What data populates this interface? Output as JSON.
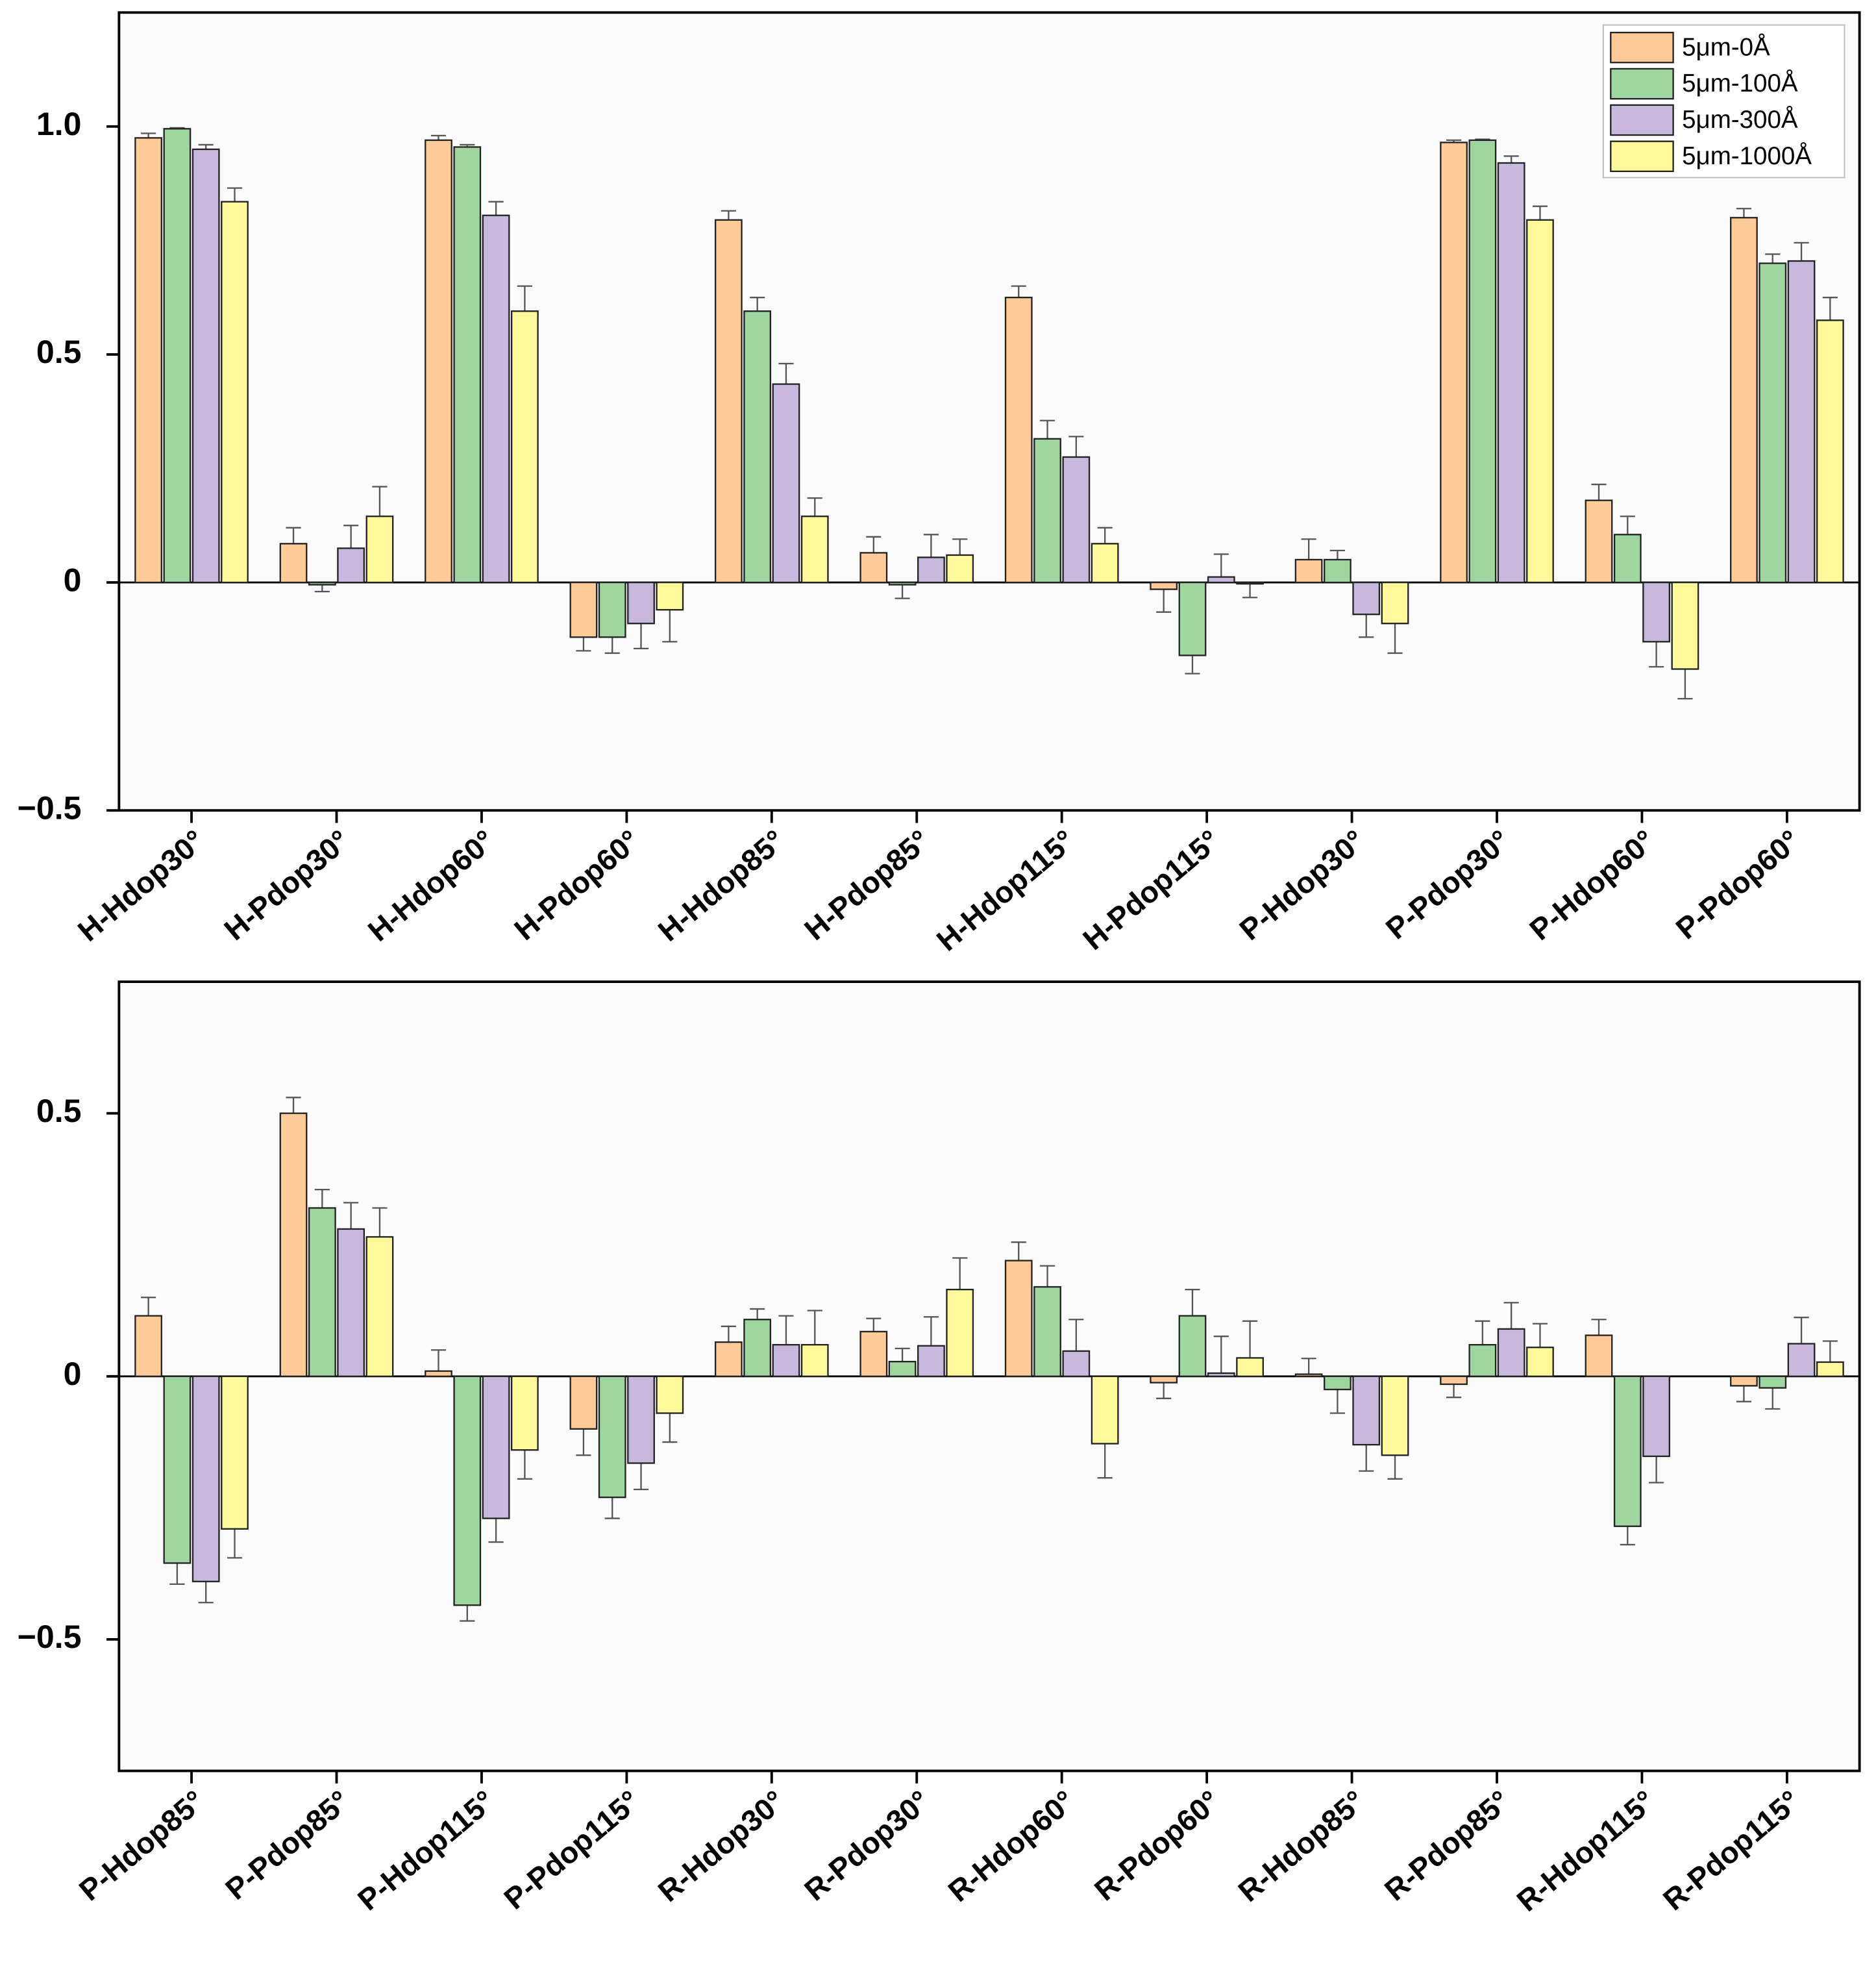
{
  "chart_data": [
    {
      "type": "bar",
      "categories": [
        "H-Hdop30°",
        "H-Pdop30°",
        "H-Hdop60°",
        "H-Pdop60°",
        "H-Hdop85°",
        "H-Pdop85°",
        "H-Hdop115°",
        "H-Pdop115°",
        "P-Hdop30°",
        "P-Pdop30°",
        "P-Hdop60°",
        "P-Pdop60°"
      ],
      "series": [
        {
          "name": "5μm-0Å",
          "color": "#fdca98",
          "values": [
            0.975,
            0.085,
            0.97,
            -0.12,
            0.795,
            0.065,
            0.625,
            -0.015,
            0.05,
            0.965,
            0.18,
            0.8
          ],
          "errors": [
            0.01,
            0.035,
            0.01,
            0.03,
            0.02,
            0.035,
            0.025,
            0.05,
            0.045,
            0.005,
            0.035,
            0.02
          ]
        },
        {
          "name": "5μm-100Å",
          "color": "#9fd59f",
          "values": [
            0.995,
            -0.005,
            0.955,
            -0.12,
            0.595,
            -0.005,
            0.315,
            -0.16,
            0.05,
            0.97,
            0.105,
            0.7
          ],
          "errors": [
            0.002,
            0.015,
            0.005,
            0.035,
            0.03,
            0.03,
            0.04,
            0.04,
            0.02,
            0.002,
            0.04,
            0.02
          ]
        },
        {
          "name": "5μm-300Å",
          "color": "#c9b8dd",
          "values": [
            0.95,
            0.075,
            0.805,
            -0.09,
            0.435,
            0.055,
            0.275,
            0.012,
            -0.07,
            0.92,
            -0.13,
            0.705
          ],
          "errors": [
            0.01,
            0.05,
            0.03,
            0.055,
            0.045,
            0.05,
            0.045,
            0.05,
            0.05,
            0.015,
            0.055,
            0.04
          ]
        },
        {
          "name": "5μm-1000Å",
          "color": "#fff99c",
          "values": [
            0.835,
            0.145,
            0.595,
            -0.06,
            0.145,
            0.06,
            0.085,
            -0.003,
            -0.09,
            0.795,
            -0.19,
            0.575
          ],
          "errors": [
            0.03,
            0.065,
            0.055,
            0.07,
            0.04,
            0.035,
            0.035,
            0.03,
            0.065,
            0.03,
            0.065,
            0.05
          ]
        }
      ],
      "ylim": [
        -0.5,
        1.25
      ],
      "yticks": [
        {
          "value": -0.5,
          "label": "−0.5"
        },
        0,
        0.5,
        {
          "value": 1,
          "label": "1.0"
        }
      ],
      "legend": "upper right"
    },
    {
      "type": "bar",
      "categories": [
        "P-Hdop85°",
        "P-Pdop85°",
        "P-Hdop115°",
        "P-Pdop115°",
        "R-Hdop30°",
        "R-Pdop30°",
        "R-Hdop60°",
        "R-Pdop60°",
        "R-Hdop85°",
        "R-Pdop85°",
        "R-Hdop115°",
        "R-Pdop115°"
      ],
      "series": [
        {
          "color": "#fdca98",
          "values": [
            0.115,
            0.5,
            0.01,
            -0.1,
            0.065,
            0.085,
            0.22,
            -0.012,
            0.004,
            -0.015,
            0.078,
            -0.018
          ],
          "errors": [
            0.035,
            0.03,
            0.04,
            0.05,
            0.03,
            0.025,
            0.035,
            0.03,
            0.03,
            0.025,
            0.03,
            0.03
          ]
        },
        {
          "color": "#9fd59f",
          "values": [
            -0.355,
            0.32,
            -0.435,
            -0.23,
            0.108,
            0.028,
            0.17,
            0.115,
            -0.025,
            0.06,
            -0.285,
            -0.022
          ],
          "errors": [
            0.04,
            0.035,
            0.03,
            0.04,
            0.02,
            0.025,
            0.04,
            0.05,
            0.045,
            0.045,
            0.035,
            0.04
          ]
        },
        {
          "color": "#c9b8dd",
          "values": [
            -0.39,
            0.28,
            -0.27,
            -0.165,
            0.06,
            0.058,
            0.048,
            0.006,
            -0.13,
            0.09,
            -0.152,
            0.062
          ],
          "errors": [
            0.04,
            0.05,
            0.045,
            0.05,
            0.055,
            0.055,
            0.06,
            0.07,
            0.05,
            0.05,
            0.05,
            0.05
          ]
        },
        {
          "color": "#fff99c",
          "values": [
            -0.29,
            0.265,
            -0.14,
            -0.07,
            0.06,
            0.165,
            -0.128,
            0.035,
            -0.15,
            0.055,
            null,
            0.027
          ],
          "errors": [
            0.055,
            0.055,
            0.055,
            0.055,
            0.065,
            0.06,
            0.065,
            0.07,
            0.045,
            0.045,
            null,
            0.04
          ]
        }
      ],
      "ylim": [
        -0.75,
        0.75
      ],
      "yticks": [
        {
          "value": -0.5,
          "label": "−0.5"
        },
        0,
        0.5
      ]
    }
  ]
}
